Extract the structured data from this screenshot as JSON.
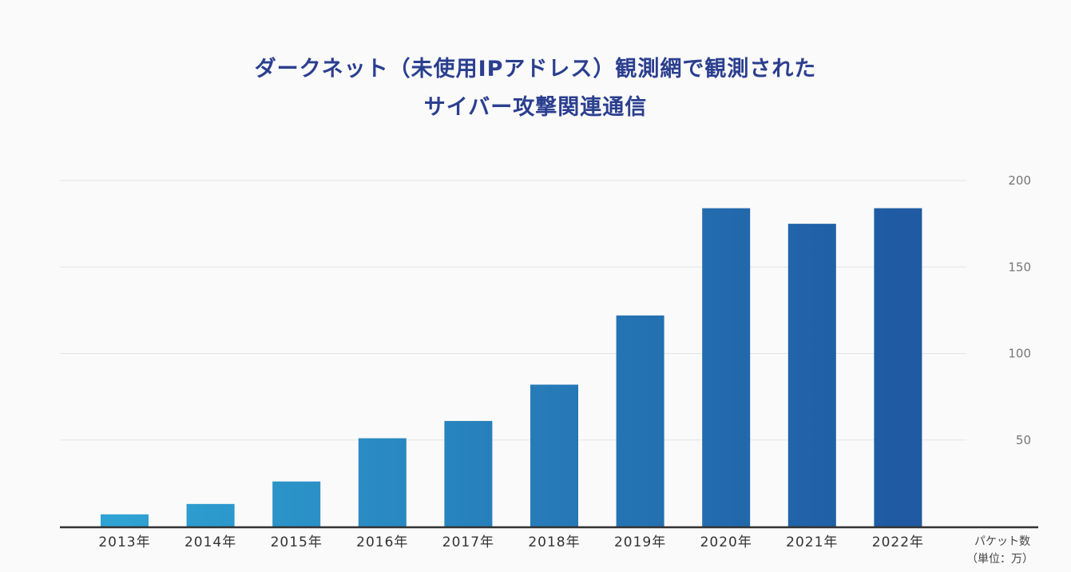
{
  "chart_data": {
    "type": "bar",
    "title_lines": [
      "ダークネット（未使用IPアドレス）観測網で観測された",
      "サイバー攻撃関連通信"
    ],
    "categories": [
      "2013年",
      "2014年",
      "2015年",
      "2016年",
      "2017年",
      "2018年",
      "2019年",
      "2020年",
      "2021年",
      "2022年"
    ],
    "values": [
      7,
      13,
      26,
      51,
      61,
      82,
      122,
      184,
      175,
      184
    ],
    "yticks": [
      "50",
      "100",
      "150",
      "200"
    ],
    "ytick_values": [
      50,
      100,
      150,
      200
    ],
    "ylim": [
      0,
      200
    ],
    "ylabel_lines": [
      "パケット数",
      "（単位：万）"
    ],
    "y_axis_side": "right",
    "grid": true,
    "colors": {
      "start": "#2ea2d2",
      "end": "#1f5aa2",
      "title": "#2b3f8f",
      "grid": "#e4e4e4",
      "baseline": "#333333"
    }
  }
}
